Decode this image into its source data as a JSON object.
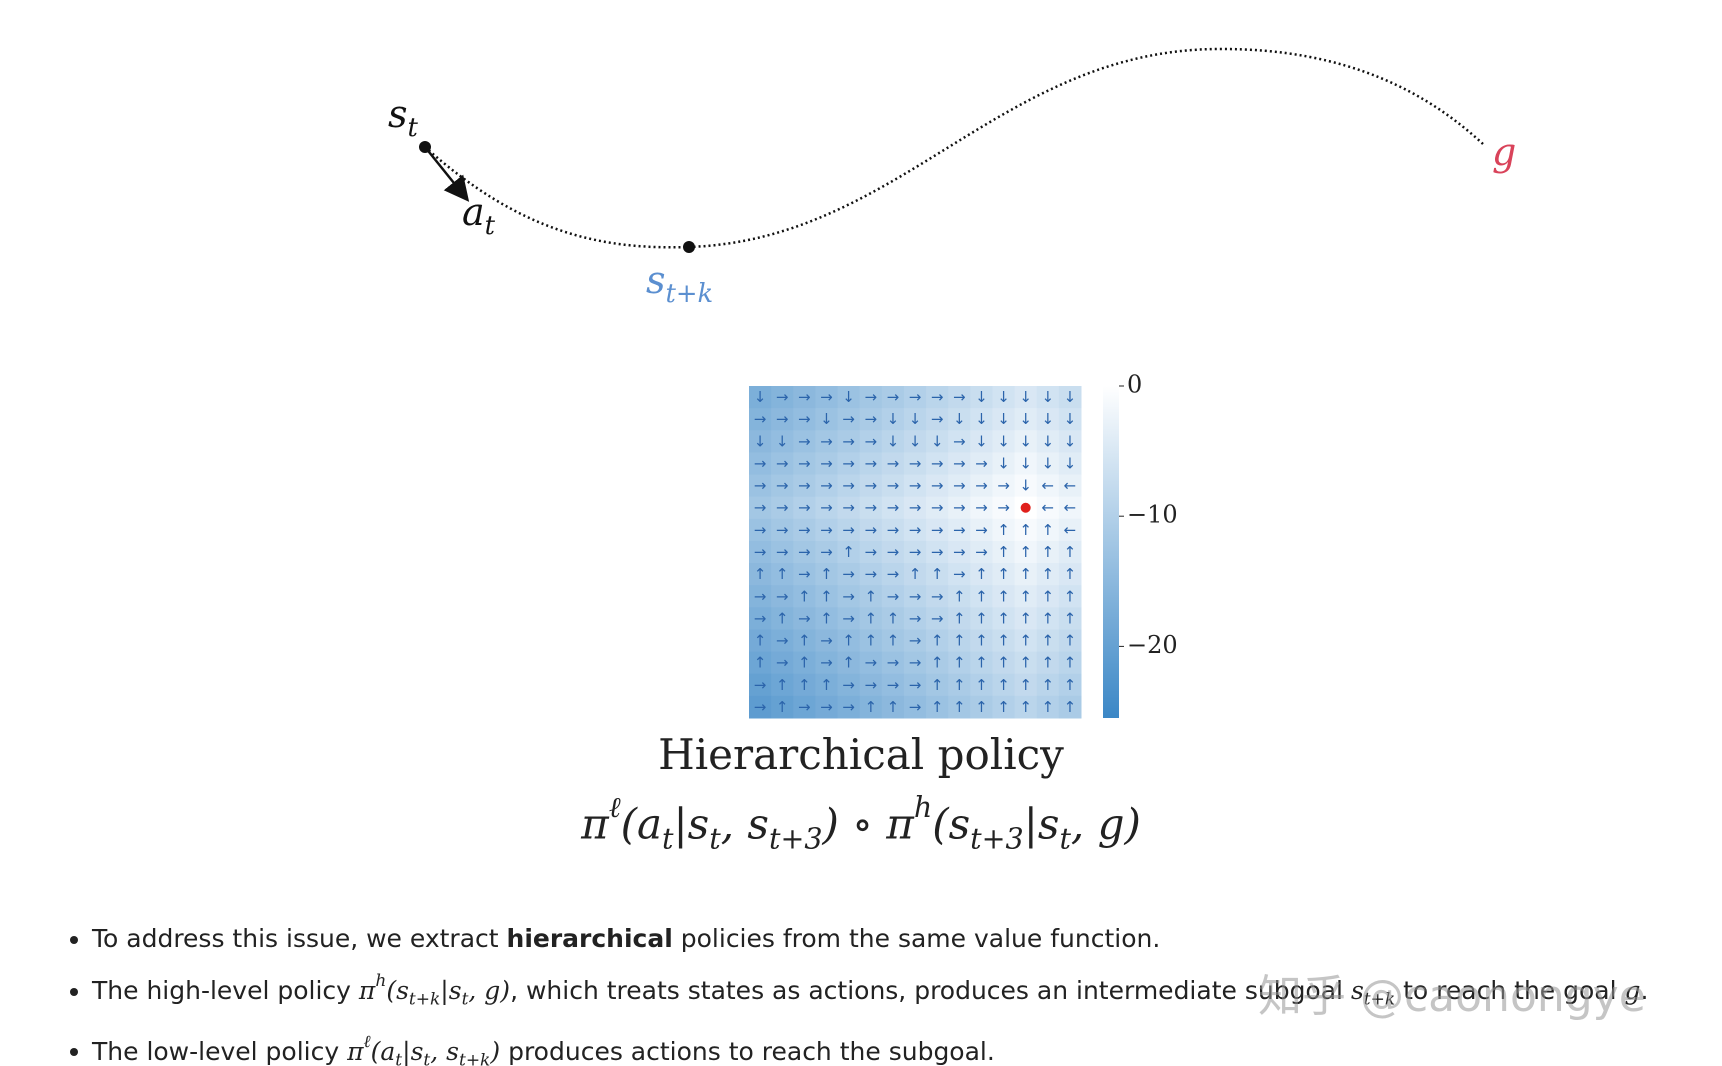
{
  "diagram": {
    "labels": [
      {
        "color": "#111111",
        "segments": [
          {
            "t": "s",
            "s": "m"
          },
          {
            "t": "t",
            "s": "sub"
          }
        ]
      },
      {
        "color": "#111111",
        "segments": [
          {
            "t": "a",
            "s": "m"
          },
          {
            "t": "t",
            "s": "sub"
          }
        ]
      },
      {
        "color": "#5b8fd0",
        "segments": [
          {
            "t": "s",
            "s": "m"
          },
          {
            "t": "t+k",
            "s": "sub"
          }
        ]
      },
      {
        "color": "#d9435a",
        "segments": [
          {
            "t": "g",
            "s": "m"
          }
        ]
      }
    ]
  },
  "chart_data": {
    "type": "heatmap",
    "title": "Hierarchical policy",
    "formula": [
      {
        "t": "π",
        "s": "m"
      },
      {
        "t": "ℓ",
        "s": "sup"
      },
      {
        "t": "(a",
        "s": "m"
      },
      {
        "t": "t",
        "s": "sub"
      },
      {
        "t": "|s",
        "s": "m"
      },
      {
        "t": "t",
        "s": "sub"
      },
      {
        "t": ", s",
        "s": "m"
      },
      {
        "t": "t+3",
        "s": "sub"
      },
      {
        "t": ") ∘ π",
        "s": "m"
      },
      {
        "t": "h",
        "s": "sup"
      },
      {
        "t": "(s",
        "s": "m"
      },
      {
        "t": "t+3",
        "s": "sub"
      },
      {
        "t": "|s",
        "s": "m"
      },
      {
        "t": "t",
        "s": "sub"
      },
      {
        "t": ", g)",
        "s": "m"
      }
    ],
    "colormap": [
      "#3b87c6",
      "#ffffff"
    ],
    "zlim": [
      -25.5,
      0
    ],
    "zticks": [
      0,
      {
        "value": -10,
        "label": "−10"
      },
      {
        "value": -20,
        "label": "−20"
      }
    ],
    "goal": {
      "row": 5,
      "col": 12,
      "color": "#e0201b"
    },
    "values": [
      [
        -17,
        -16,
        -15,
        -14,
        -13,
        -12,
        -11,
        -10,
        -9,
        -8,
        -7,
        -6,
        -5,
        -6,
        -7
      ],
      [
        -16,
        -15,
        -14,
        -13,
        -12,
        -11,
        -10,
        -9,
        -8,
        -7,
        -6,
        -5,
        -4,
        -5,
        -6
      ],
      [
        -15,
        -14,
        -13,
        -12,
        -11,
        -10,
        -9,
        -8,
        -7,
        -6,
        -5,
        -4,
        -3,
        -4,
        -5
      ],
      [
        -14,
        -13,
        -12,
        -11,
        -10,
        -9,
        -8,
        -7,
        -6,
        -5,
        -4,
        -3,
        -2,
        -3,
        -4
      ],
      [
        -13,
        -12,
        -11,
        -10,
        -9,
        -8,
        -7,
        -6,
        -5,
        -4,
        -3,
        -2,
        -1,
        -2,
        -3
      ],
      [
        -12,
        -11,
        -10,
        -9,
        -8,
        -7,
        -6,
        -5,
        -4,
        -3,
        -2,
        -1,
        0,
        -1,
        -2
      ],
      [
        -13,
        -12,
        -11,
        -10,
        -9,
        -8,
        -7,
        -6,
        -5,
        -4,
        -3,
        -2,
        -1,
        -2,
        -3
      ],
      [
        -14,
        -13,
        -12,
        -11,
        -10,
        -9,
        -8,
        -7,
        -6,
        -5,
        -4,
        -3,
        -2,
        -3,
        -4
      ],
      [
        -15,
        -14,
        -13,
        -12,
        -11,
        -10,
        -9,
        -8,
        -7,
        -6,
        -5,
        -4,
        -3,
        -4,
        -5
      ],
      [
        -16,
        -15,
        -14,
        -13,
        -12,
        -11,
        -10,
        -9,
        -8,
        -7,
        -6,
        -5,
        -4,
        -5,
        -6
      ],
      [
        -17,
        -16,
        -15,
        -14,
        -13,
        -12,
        -11,
        -10,
        -9,
        -8,
        -7,
        -6,
        -5,
        -6,
        -7
      ],
      [
        -18,
        -17,
        -16,
        -15,
        -14,
        -13,
        -12,
        -11,
        -10,
        -9,
        -8,
        -7,
        -6,
        -7,
        -8
      ],
      [
        -19,
        -18,
        -17,
        -16,
        -15,
        -14,
        -13,
        -12,
        -11,
        -10,
        -9,
        -8,
        -7,
        -8,
        -9
      ],
      [
        -20,
        -19,
        -18,
        -17,
        -16,
        -15,
        -14,
        -13,
        -12,
        -11,
        -10,
        -9,
        -8,
        -9,
        -10
      ],
      [
        -21,
        -20,
        -19,
        -18,
        -17,
        -16,
        -15,
        -14,
        -13,
        -12,
        -11,
        -10,
        -9,
        -10,
        -11
      ]
    ],
    "arrows": [
      [
        "↓",
        "→",
        "→",
        "→",
        "↓",
        "→",
        "→",
        "→",
        "→",
        "→",
        "↓",
        "↓",
        "↓",
        "↓",
        "↓"
      ],
      [
        "→",
        "→",
        "→",
        "↓",
        "→",
        "→",
        "↓",
        "↓",
        "→",
        "↓",
        "↓",
        "↓",
        "↓",
        "↓",
        "↓"
      ],
      [
        "↓",
        "↓",
        "→",
        "→",
        "→",
        "→",
        "↓",
        "↓",
        "↓",
        "→",
        "↓",
        "↓",
        "↓",
        "↓",
        "↓"
      ],
      [
        "→",
        "→",
        "→",
        "→",
        "→",
        "→",
        "→",
        "→",
        "→",
        "→",
        "→",
        "↓",
        "↓",
        "↓",
        "↓"
      ],
      [
        "→",
        "→",
        "→",
        "→",
        "→",
        "→",
        "→",
        "→",
        "→",
        "→",
        "→",
        "→",
        "↓",
        "←",
        "←"
      ],
      [
        "→",
        "→",
        "→",
        "→",
        "→",
        "→",
        "→",
        "→",
        "→",
        "→",
        "→",
        "→",
        null,
        "←",
        "←"
      ],
      [
        "→",
        "→",
        "→",
        "→",
        "→",
        "→",
        "→",
        "→",
        "→",
        "→",
        "→",
        "↑",
        "↑",
        "↑",
        "←"
      ],
      [
        "→",
        "→",
        "→",
        "→",
        "↑",
        "→",
        "→",
        "→",
        "→",
        "→",
        "→",
        "↑",
        "↑",
        "↑",
        "↑"
      ],
      [
        "↑",
        "↑",
        "→",
        "↑",
        "→",
        "→",
        "→",
        "↑",
        "↑",
        "→",
        "↑",
        "↑",
        "↑",
        "↑",
        "↑"
      ],
      [
        "→",
        "→",
        "↑",
        "↑",
        "→",
        "↑",
        "→",
        "→",
        "→",
        "↑",
        "↑",
        "↑",
        "↑",
        "↑",
        "↑"
      ],
      [
        "→",
        "↑",
        "→",
        "↑",
        "→",
        "↑",
        "↑",
        "→",
        "→",
        "↑",
        "↑",
        "↑",
        "↑",
        "↑",
        "↑"
      ],
      [
        "↑",
        "→",
        "↑",
        "→",
        "↑",
        "↑",
        "↑",
        "→",
        "↑",
        "↑",
        "↑",
        "↑",
        "↑",
        "↑",
        "↑"
      ],
      [
        "↑",
        "→",
        "↑",
        "→",
        "↑",
        "→",
        "→",
        "→",
        "↑",
        "↑",
        "↑",
        "↑",
        "↑",
        "↑",
        "↑"
      ],
      [
        "→",
        "↑",
        "↑",
        "↑",
        "→",
        "→",
        "→",
        "→",
        "↑",
        "↑",
        "↑",
        "↑",
        "↑",
        "↑",
        "↑"
      ],
      [
        "→",
        "↑",
        "→",
        "→",
        "→",
        "↑",
        "↑",
        "→",
        "↑",
        "↑",
        "↑",
        "↑",
        "↑",
        "↑",
        "↑"
      ]
    ]
  },
  "bullets": [
    [
      {
        "t": "To address this issue, we extract ",
        "s": "n"
      },
      {
        "t": "hierarchical",
        "s": "b"
      },
      {
        "t": " policies from the same value function.",
        "s": "n"
      }
    ],
    [
      {
        "t": "The high-level policy ",
        "s": "n"
      },
      {
        "t": "π",
        "s": "m"
      },
      {
        "t": "h",
        "s": "sup"
      },
      {
        "t": "(s",
        "s": "m"
      },
      {
        "t": "t+k",
        "s": "sub"
      },
      {
        "t": "|s",
        "s": "m"
      },
      {
        "t": "t",
        "s": "sub"
      },
      {
        "t": ", g)",
        "s": "m"
      },
      {
        "t": ", which treats states as actions, produces an intermediate subgoal ",
        "s": "n"
      },
      {
        "t": "s",
        "s": "m"
      },
      {
        "t": "t+k",
        "s": "sub"
      },
      {
        "t": " to reach the goal ",
        "s": "n"
      },
      {
        "t": "g",
        "s": "m"
      },
      {
        "t": ".",
        "s": "n"
      }
    ],
    [
      {
        "t": "The low-level policy ",
        "s": "n"
      },
      {
        "t": "π",
        "s": "m"
      },
      {
        "t": "ℓ",
        "s": "sup"
      },
      {
        "t": "(a",
        "s": "m"
      },
      {
        "t": "t",
        "s": "sub"
      },
      {
        "t": "|s",
        "s": "m"
      },
      {
        "t": "t",
        "s": "sub"
      },
      {
        "t": ", s",
        "s": "m"
      },
      {
        "t": "t+k",
        "s": "sub"
      },
      {
        "t": ")",
        "s": "m"
      },
      {
        "t": " produces actions to reach the subgoal.",
        "s": "n"
      }
    ]
  ],
  "watermark": "知乎 @caonongye"
}
